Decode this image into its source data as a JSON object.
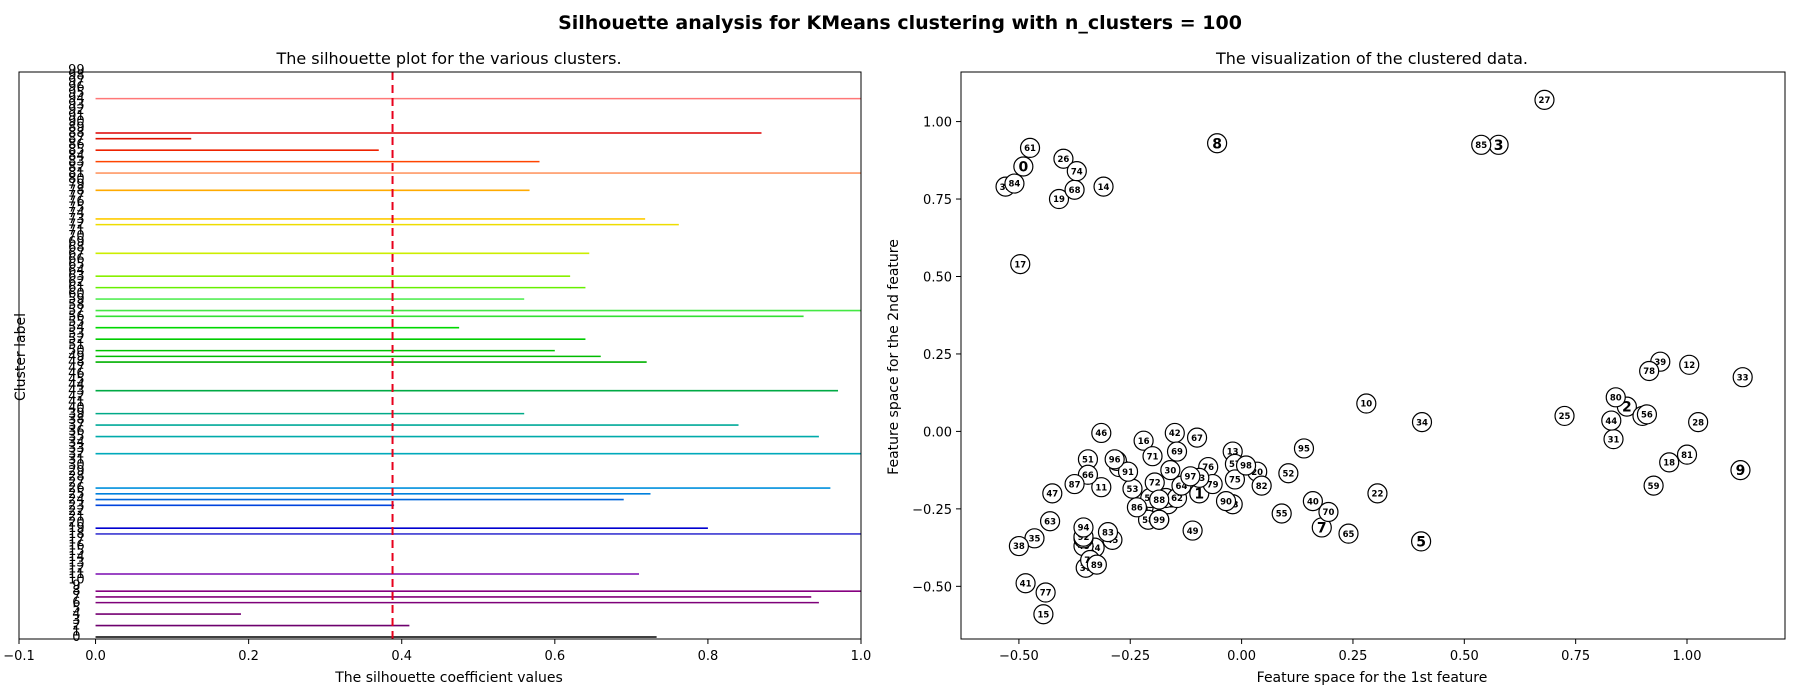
{
  "figure": {
    "suptitle": "Silhouette analysis for KMeans clustering with n_clusters = 100"
  },
  "chart_data": [
    {
      "type": "bar",
      "title": "The silhouette plot for the various clusters.",
      "xlabel": "The silhouette coefficient values",
      "ylabel": "Cluster label",
      "xlim": [
        -0.1,
        1.0
      ],
      "xticks": [
        -0.1,
        0.0,
        0.2,
        0.4,
        0.6,
        0.8,
        1.0
      ],
      "xtick_labels": [
        "−0.1",
        "0.0",
        "0.2",
        "0.4",
        "0.6",
        "0.8",
        "1.0"
      ],
      "reference_line": {
        "x": 0.388,
        "color": "#e8001c",
        "style": "dashed"
      },
      "clusters": [
        {
          "label": "0",
          "value": 0.733,
          "color": "#000000"
        },
        {
          "label": "2",
          "value": 0.41,
          "color": "#6e006e"
        },
        {
          "label": "4",
          "value": 0.19,
          "color": "#760073"
        },
        {
          "label": "6",
          "value": 0.945,
          "color": "#7e0079"
        },
        {
          "label": "7",
          "value": 0.935,
          "color": "#820079"
        },
        {
          "label": "8",
          "value": 1.0,
          "color": "#860080"
        },
        {
          "label": "11",
          "value": 0.71,
          "color": "#7a0ab0"
        },
        {
          "label": "18",
          "value": 1.0,
          "color": "#3c38d2"
        },
        {
          "label": "19",
          "value": 0.8,
          "color": "#0000d0"
        },
        {
          "label": "23",
          "value": 0.39,
          "color": "#0044dd"
        },
        {
          "label": "24",
          "value": 0.69,
          "color": "#0066dd"
        },
        {
          "label": "25",
          "value": 0.725,
          "color": "#0080dd"
        },
        {
          "label": "26",
          "value": 0.96,
          "color": "#0090dd"
        },
        {
          "label": "32",
          "value": 1.0,
          "color": "#00aabb"
        },
        {
          "label": "35",
          "value": 0.945,
          "color": "#00aaaa"
        },
        {
          "label": "37",
          "value": 0.84,
          "color": "#00aa99"
        },
        {
          "label": "39",
          "value": 0.56,
          "color": "#00aa88"
        },
        {
          "label": "43",
          "value": 0.97,
          "color": "#00aa44"
        },
        {
          "label": "48",
          "value": 0.72,
          "color": "#00b000"
        },
        {
          "label": "49",
          "value": 0.66,
          "color": "#00bb00"
        },
        {
          "label": "50",
          "value": 0.6,
          "color": "#00c400"
        },
        {
          "label": "52",
          "value": 0.64,
          "color": "#00cc00"
        },
        {
          "label": "54",
          "value": 0.475,
          "color": "#00d800"
        },
        {
          "label": "56",
          "value": 0.925,
          "color": "#33e033"
        },
        {
          "label": "57",
          "value": 1.0,
          "color": "#44e844"
        },
        {
          "label": "59",
          "value": 0.56,
          "color": "#55ee55"
        },
        {
          "label": "61",
          "value": 0.64,
          "color": "#66f000"
        },
        {
          "label": "63",
          "value": 0.62,
          "color": "#88f000"
        },
        {
          "label": "67",
          "value": 0.645,
          "color": "#ccee00"
        },
        {
          "label": "72",
          "value": 0.762,
          "color": "#eedd00"
        },
        {
          "label": "73",
          "value": 0.718,
          "color": "#ffcc00"
        },
        {
          "label": "78",
          "value": 0.567,
          "color": "#ffaa00"
        },
        {
          "label": "81",
          "value": 1.0,
          "color": "#ff9966"
        },
        {
          "label": "83",
          "value": 0.58,
          "color": "#ff4400"
        },
        {
          "label": "85",
          "value": 0.37,
          "color": "#ee2200"
        },
        {
          "label": "87",
          "value": 0.125,
          "color": "#dd1100"
        },
        {
          "label": "88",
          "value": 0.87,
          "color": "#dd0000"
        },
        {
          "label": "94",
          "value": 1.0,
          "color": "#ff7777"
        }
      ],
      "cluster_labels": [
        "0",
        "1",
        "2",
        "3",
        "4",
        "5",
        "6",
        "7",
        "8",
        "9",
        "10",
        "11",
        "12",
        "13",
        "14",
        "15",
        "16",
        "17",
        "18",
        "19",
        "20",
        "21",
        "22",
        "23",
        "24",
        "25",
        "26",
        "27",
        "28",
        "29",
        "30",
        "31",
        "32",
        "33",
        "34",
        "35",
        "36",
        "37",
        "38",
        "39",
        "40",
        "41",
        "42",
        "43",
        "44",
        "45",
        "46",
        "47",
        "48",
        "49",
        "50",
        "51",
        "52",
        "53",
        "54",
        "55",
        "56",
        "57",
        "58",
        "59",
        "60",
        "61",
        "62",
        "63",
        "64",
        "65",
        "66",
        "67",
        "68",
        "69",
        "70",
        "71",
        "72",
        "73",
        "74",
        "75",
        "76",
        "77",
        "78",
        "79",
        "80",
        "81",
        "82",
        "83",
        "84",
        "85",
        "86",
        "87",
        "88",
        "89",
        "90",
        "91",
        "92",
        "93",
        "94",
        "95",
        "96",
        "97",
        "98",
        "99"
      ]
    },
    {
      "type": "scatter",
      "title": "The visualization of the clustered data.",
      "xlabel": "Feature space for the 1st feature",
      "ylabel": "Feature space for the 2nd feature",
      "xlim": [
        -0.63,
        1.22
      ],
      "ylim": [
        -0.67,
        1.16
      ],
      "xticks": [
        -0.5,
        -0.25,
        0.0,
        0.25,
        0.5,
        0.75,
        1.0
      ],
      "xtick_labels": [
        "−0.50",
        "−0.25",
        "0.00",
        "0.25",
        "0.50",
        "0.75",
        "1.00"
      ],
      "yticks": [
        -0.5,
        -0.25,
        0.0,
        0.25,
        0.5,
        0.75,
        1.0
      ],
      "ytick_labels": [
        "−0.50",
        "−0.25",
        "0.00",
        "0.25",
        "0.50",
        "0.75",
        "1.00"
      ],
      "centers": [
        {
          "label": "0",
          "x": -0.49,
          "y": 0.855
        },
        {
          "label": "1",
          "x": -0.095,
          "y": -0.2
        },
        {
          "label": "2",
          "x": 0.865,
          "y": 0.08
        },
        {
          "label": "3",
          "x": 0.577,
          "y": 0.925
        },
        {
          "label": "4",
          "x": 0.9,
          "y": 0.05
        },
        {
          "label": "5",
          "x": 0.403,
          "y": -0.355
        },
        {
          "label": "6",
          "x": -0.22,
          "y": -0.245
        },
        {
          "label": "7",
          "x": 0.18,
          "y": -0.31
        },
        {
          "label": "8",
          "x": -0.055,
          "y": 0.93
        },
        {
          "label": "9",
          "x": 1.12,
          "y": -0.125
        },
        {
          "label": "10",
          "x": 0.28,
          "y": 0.09
        },
        {
          "label": "11",
          "x": -0.315,
          "y": -0.18
        },
        {
          "label": "12",
          "x": 1.005,
          "y": 0.215
        },
        {
          "label": "13",
          "x": -0.02,
          "y": -0.065
        },
        {
          "label": "14",
          "x": -0.31,
          "y": 0.79
        },
        {
          "label": "15",
          "x": -0.445,
          "y": -0.59
        },
        {
          "label": "16",
          "x": -0.22,
          "y": -0.03
        },
        {
          "label": "17",
          "x": -0.497,
          "y": 0.54
        },
        {
          "label": "18",
          "x": 0.96,
          "y": -0.1
        },
        {
          "label": "19",
          "x": -0.41,
          "y": 0.75
        },
        {
          "label": "20",
          "x": 0.035,
          "y": -0.13
        },
        {
          "label": "21",
          "x": -0.165,
          "y": -0.235
        },
        {
          "label": "22",
          "x": 0.305,
          "y": -0.2
        },
        {
          "label": "23",
          "x": -0.275,
          "y": -0.115
        },
        {
          "label": "24",
          "x": -0.33,
          "y": -0.375
        },
        {
          "label": "25",
          "x": 0.725,
          "y": 0.05
        },
        {
          "label": "26",
          "x": -0.4,
          "y": 0.88
        },
        {
          "label": "27",
          "x": 0.68,
          "y": 1.07
        },
        {
          "label": "28",
          "x": 1.025,
          "y": 0.03
        },
        {
          "label": "29",
          "x": -0.17,
          "y": -0.215
        },
        {
          "label": "30",
          "x": -0.16,
          "y": -0.125
        },
        {
          "label": "31",
          "x": 0.835,
          "y": -0.025
        },
        {
          "label": "32",
          "x": -0.53,
          "y": 0.79
        },
        {
          "label": "33",
          "x": 1.125,
          "y": 0.175
        },
        {
          "label": "34",
          "x": 0.405,
          "y": 0.03
        },
        {
          "label": "35",
          "x": -0.465,
          "y": -0.345
        },
        {
          "label": "36",
          "x": -0.28,
          "y": -0.095
        },
        {
          "label": "37",
          "x": -0.35,
          "y": -0.44
        },
        {
          "label": "38",
          "x": -0.5,
          "y": -0.37
        },
        {
          "label": "39",
          "x": 0.94,
          "y": 0.225
        },
        {
          "label": "40",
          "x": 0.16,
          "y": -0.225
        },
        {
          "label": "41",
          "x": -0.485,
          "y": -0.49
        },
        {
          "label": "42",
          "x": -0.15,
          "y": -0.005
        },
        {
          "label": "43",
          "x": -0.02,
          "y": -0.235
        },
        {
          "label": "44",
          "x": 0.83,
          "y": 0.035
        },
        {
          "label": "45",
          "x": -0.29,
          "y": -0.35
        },
        {
          "label": "46",
          "x": -0.315,
          "y": -0.005
        },
        {
          "label": "47",
          "x": -0.425,
          "y": -0.2
        },
        {
          "label": "48",
          "x": -0.355,
          "y": -0.37
        },
        {
          "label": "49",
          "x": -0.11,
          "y": -0.32
        },
        {
          "label": "50",
          "x": -0.205,
          "y": -0.215
        },
        {
          "label": "51",
          "x": -0.345,
          "y": -0.09
        },
        {
          "label": "52",
          "x": 0.105,
          "y": -0.135
        },
        {
          "label": "53",
          "x": -0.245,
          "y": -0.185
        },
        {
          "label": "54",
          "x": -0.355,
          "y": -0.345
        },
        {
          "label": "55",
          "x": 0.09,
          "y": -0.265
        },
        {
          "label": "56",
          "x": 0.91,
          "y": 0.055
        },
        {
          "label": "57",
          "x": -0.015,
          "y": -0.105
        },
        {
          "label": "58",
          "x": -0.21,
          "y": -0.285
        },
        {
          "label": "59",
          "x": 0.925,
          "y": -0.175
        },
        {
          "label": "60",
          "x": -0.185,
          "y": -0.285
        },
        {
          "label": "61",
          "x": -0.475,
          "y": 0.915
        },
        {
          "label": "62",
          "x": -0.145,
          "y": -0.215
        },
        {
          "label": "63",
          "x": -0.43,
          "y": -0.29
        },
        {
          "label": "64",
          "x": -0.135,
          "y": -0.175
        },
        {
          "label": "65",
          "x": 0.24,
          "y": -0.33
        },
        {
          "label": "66",
          "x": -0.345,
          "y": -0.14
        },
        {
          "label": "67",
          "x": -0.1,
          "y": -0.02
        },
        {
          "label": "68",
          "x": -0.375,
          "y": 0.78
        },
        {
          "label": "69",
          "x": -0.145,
          "y": -0.065
        },
        {
          "label": "70",
          "x": 0.195,
          "y": -0.26
        },
        {
          "label": "71",
          "x": -0.2,
          "y": -0.08
        },
        {
          "label": "72",
          "x": -0.195,
          "y": -0.165
        },
        {
          "label": "73",
          "x": -0.34,
          "y": -0.415
        },
        {
          "label": "74",
          "x": -0.37,
          "y": 0.84
        },
        {
          "label": "75",
          "x": -0.015,
          "y": -0.155
        },
        {
          "label": "76",
          "x": -0.075,
          "y": -0.115
        },
        {
          "label": "77",
          "x": -0.44,
          "y": -0.52
        },
        {
          "label": "78",
          "x": 0.915,
          "y": 0.195
        },
        {
          "label": "79",
          "x": -0.065,
          "y": -0.17
        },
        {
          "label": "80",
          "x": 0.84,
          "y": 0.11
        },
        {
          "label": "81",
          "x": 1.0,
          "y": -0.075
        },
        {
          "label": "82",
          "x": 0.045,
          "y": -0.175
        },
        {
          "label": "83",
          "x": -0.3,
          "y": -0.325
        },
        {
          "label": "84",
          "x": -0.51,
          "y": 0.8
        },
        {
          "label": "85",
          "x": 0.538,
          "y": 0.925
        },
        {
          "label": "86",
          "x": -0.235,
          "y": -0.245
        },
        {
          "label": "87",
          "x": -0.375,
          "y": -0.17
        },
        {
          "label": "88",
          "x": -0.185,
          "y": -0.22
        },
        {
          "label": "89",
          "x": -0.325,
          "y": -0.43
        },
        {
          "label": "90",
          "x": -0.035,
          "y": -0.225
        },
        {
          "label": "91",
          "x": -0.255,
          "y": -0.13
        },
        {
          "label": "92",
          "x": -0.355,
          "y": -0.34
        },
        {
          "label": "93",
          "x": -0.095,
          "y": -0.15
        },
        {
          "label": "94",
          "x": -0.355,
          "y": -0.31
        },
        {
          "label": "95",
          "x": 0.14,
          "y": -0.055
        },
        {
          "label": "96",
          "x": -0.285,
          "y": -0.09
        },
        {
          "label": "97",
          "x": -0.115,
          "y": -0.145
        },
        {
          "label": "98",
          "x": 0.01,
          "y": -0.11
        },
        {
          "label": "99",
          "x": -0.185,
          "y": -0.285
        }
      ]
    }
  ]
}
